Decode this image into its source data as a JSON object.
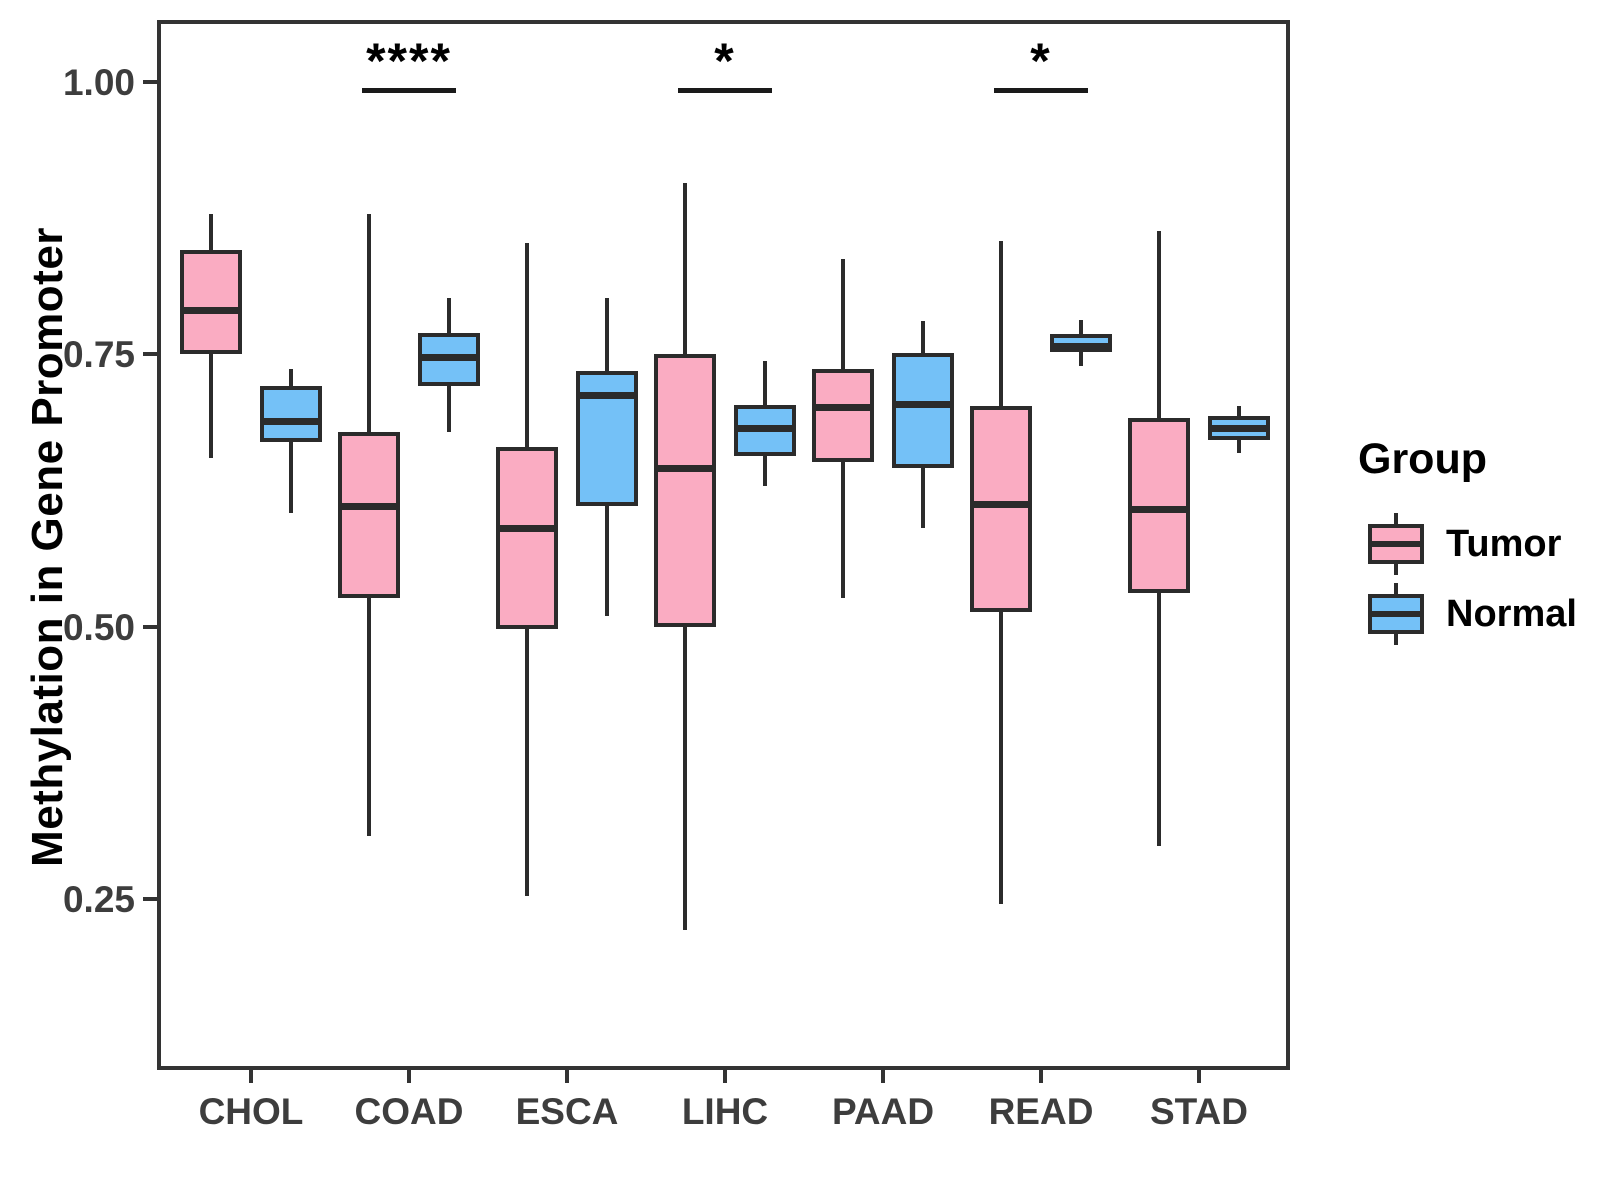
{
  "chart_data": {
    "type": "boxplot",
    "title": "",
    "xlabel": "",
    "ylabel": "Methylation in Gene Promoter",
    "categories": [
      "CHOL",
      "COAD",
      "ESCA",
      "LIHC",
      "PAAD",
      "READ",
      "STAD"
    ],
    "y_ticks": [
      1.0,
      0.75,
      0.5,
      0.25
    ],
    "y_tick_labels": [
      "1.00",
      "0.75",
      "0.50",
      "0.25"
    ],
    "ylim": [
      0.09,
      1.06
    ],
    "grid": "off",
    "legend_position": "right",
    "series": [
      {
        "name": "Tumor",
        "color": "#FAACC2",
        "boxes": [
          {
            "category": "CHOL",
            "whisker_low": 0.655,
            "q1": 0.75,
            "median": 0.79,
            "q3": 0.845,
            "whisker_high": 0.878
          },
          {
            "category": "COAD",
            "whisker_low": 0.308,
            "q1": 0.526,
            "median": 0.61,
            "q3": 0.678,
            "whisker_high": 0.878
          },
          {
            "category": "ESCA",
            "whisker_low": 0.253,
            "q1": 0.498,
            "median": 0.59,
            "q3": 0.665,
            "whisker_high": 0.852
          },
          {
            "category": "LIHC",
            "whisker_low": 0.222,
            "q1": 0.5,
            "median": 0.645,
            "q3": 0.75,
            "whisker_high": 0.907
          },
          {
            "category": "PAAD",
            "whisker_low": 0.526,
            "q1": 0.651,
            "median": 0.701,
            "q3": 0.736,
            "whisker_high": 0.837
          },
          {
            "category": "READ",
            "whisker_low": 0.245,
            "q1": 0.513,
            "median": 0.612,
            "q3": 0.702,
            "whisker_high": 0.854
          },
          {
            "category": "STAD",
            "whisker_low": 0.299,
            "q1": 0.531,
            "median": 0.607,
            "q3": 0.691,
            "whisker_high": 0.863
          }
        ]
      },
      {
        "name": "Normal",
        "color": "#74C1F7",
        "boxes": [
          {
            "category": "CHOL",
            "whisker_low": 0.604,
            "q1": 0.669,
            "median": 0.688,
            "q3": 0.721,
            "whisker_high": 0.736
          },
          {
            "category": "COAD",
            "whisker_low": 0.678,
            "q1": 0.721,
            "median": 0.747,
            "q3": 0.769,
            "whisker_high": 0.801
          },
          {
            "category": "ESCA",
            "whisker_low": 0.51,
            "q1": 0.611,
            "median": 0.712,
            "q3": 0.734,
            "whisker_high": 0.801
          },
          {
            "category": "LIHC",
            "whisker_low": 0.629,
            "q1": 0.656,
            "median": 0.682,
            "q3": 0.703,
            "whisker_high": 0.744
          },
          {
            "category": "PAAD",
            "whisker_low": 0.59,
            "q1": 0.645,
            "median": 0.704,
            "q3": 0.751,
            "whisker_high": 0.78
          },
          {
            "category": "READ",
            "whisker_low": 0.739,
            "q1": 0.752,
            "median": 0.757,
            "q3": 0.768,
            "whisker_high": 0.781
          },
          {
            "category": "STAD",
            "whisker_low": 0.659,
            "q1": 0.671,
            "median": 0.682,
            "q3": 0.693,
            "whisker_high": 0.702
          }
        ]
      }
    ],
    "significance_annotations": [
      {
        "category": "COAD",
        "label": "****"
      },
      {
        "category": "LIHC",
        "label": "*"
      },
      {
        "category": "READ",
        "label": "*"
      }
    ]
  },
  "legend": {
    "title": "Group",
    "entries": [
      {
        "label": "Tumor"
      },
      {
        "label": "Normal"
      }
    ]
  },
  "colors": {
    "tumor_fill": "#FAACC2",
    "normal_fill": "#74C1F7",
    "box_border": "#2b2b2b",
    "panel_border": "#333333",
    "tick_text": "#3d3d3d",
    "background": "#ffffff"
  }
}
